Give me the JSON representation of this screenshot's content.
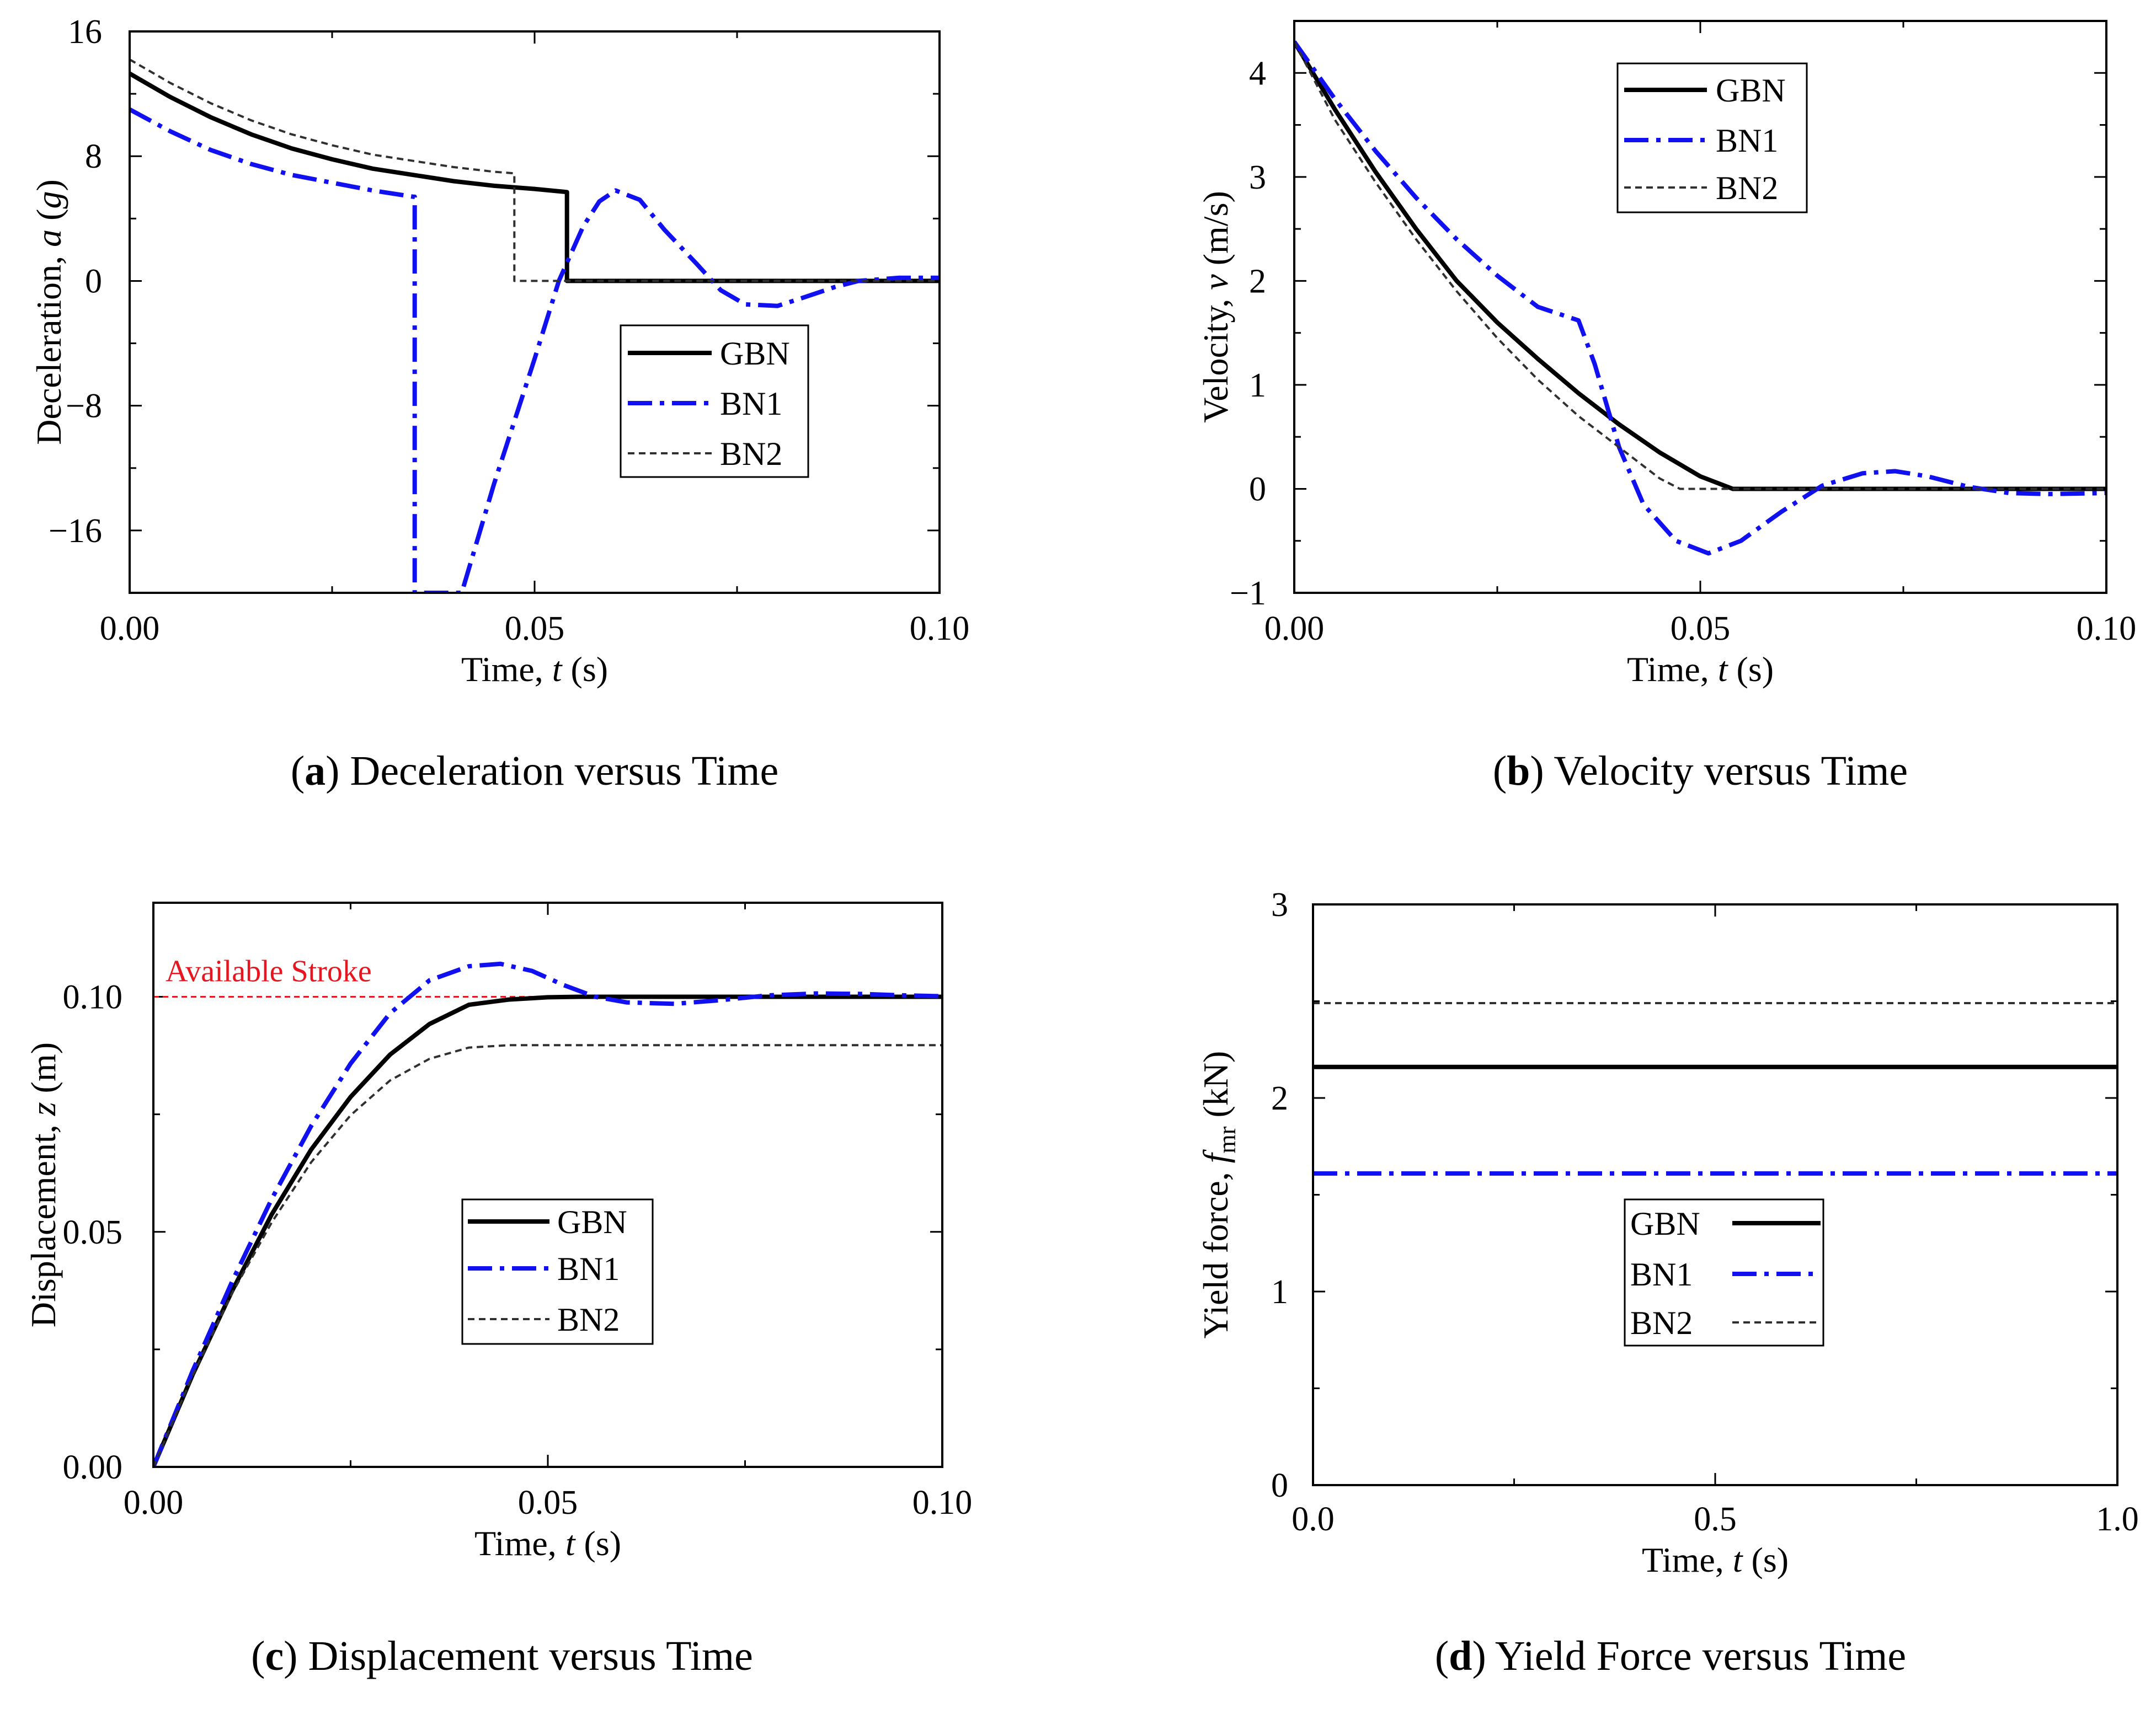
{
  "chart_data": [
    {
      "id": "a",
      "type": "line",
      "caption": {
        "letter": "a",
        "text": " Deceleration versus Time"
      },
      "xlabel": {
        "text": "Time, ",
        "var": "t",
        "unit": " (s)"
      },
      "ylabel": {
        "text": "Deceleration, ",
        "var": "a",
        "unit": " (g)",
        "unit_var": "g"
      },
      "xlim": [
        0,
        0.1
      ],
      "ylim": [
        -20,
        16
      ],
      "xticks": [
        0,
        0.05,
        0.1
      ],
      "xtick_labels": [
        "0.00",
        "0.05",
        "0.10"
      ],
      "yticks": [
        -16,
        -8,
        0,
        8,
        16
      ],
      "ytick_labels": [
        "−16",
        "−8",
        "0",
        "8",
        "16"
      ],
      "legend": "center-right",
      "series": [
        {
          "name": "GBN",
          "style": "solid",
          "x": [
            0,
            0.005,
            0.01,
            0.015,
            0.02,
            0.025,
            0.03,
            0.035,
            0.04,
            0.045,
            0.05,
            0.054,
            0.054,
            0.1
          ],
          "y": [
            13.3,
            11.8,
            10.5,
            9.4,
            8.5,
            7.8,
            7.2,
            6.8,
            6.4,
            6.1,
            5.9,
            5.7,
            0,
            0
          ]
        },
        {
          "name": "BN1",
          "style": "dashdot",
          "x": [
            0,
            0.005,
            0.01,
            0.015,
            0.02,
            0.025,
            0.03,
            0.035,
            0.0352,
            0.0352,
            0.041,
            0.045,
            0.05,
            0.053,
            0.056,
            0.058,
            0.06,
            0.063,
            0.066,
            0.07,
            0.073,
            0.076,
            0.08,
            0.083,
            0.087,
            0.09,
            0.095,
            0.1
          ],
          "y": [
            11,
            9.6,
            8.4,
            7.5,
            6.8,
            6.3,
            5.8,
            5.4,
            5.4,
            -20,
            -20,
            -13,
            -5,
            0,
            3.5,
            5.1,
            5.8,
            5.2,
            3.3,
            1.1,
            -0.6,
            -1.5,
            -1.6,
            -1.1,
            -0.4,
            0,
            0.2,
            0.2
          ]
        },
        {
          "name": "BN2",
          "style": "dotted",
          "x": [
            0,
            0.005,
            0.01,
            0.015,
            0.02,
            0.025,
            0.03,
            0.035,
            0.04,
            0.045,
            0.0475,
            0.0475,
            0.1
          ],
          "y": [
            14.2,
            12.7,
            11.4,
            10.3,
            9.4,
            8.7,
            8.1,
            7.7,
            7.3,
            7.0,
            6.9,
            0,
            0
          ]
        }
      ]
    },
    {
      "id": "b",
      "type": "line",
      "caption": {
        "letter": "b",
        "text": " Velocity versus Time"
      },
      "xlabel": {
        "text": "Time, ",
        "var": "t",
        "unit": " (s)"
      },
      "ylabel": {
        "text": "Velocity, ",
        "var": "v",
        "unit": " (m/s)"
      },
      "xlim": [
        0,
        0.1
      ],
      "ylim": [
        -1,
        4.5
      ],
      "xticks": [
        0,
        0.05,
        0.1
      ],
      "xtick_labels": [
        "0.00",
        "0.05",
        "0.10"
      ],
      "yticks": [
        -1,
        0,
        1,
        2,
        3,
        4
      ],
      "ytick_labels": [
        "−1",
        "0",
        "1",
        "2",
        "3",
        "4"
      ],
      "legend": "top-center",
      "series": [
        {
          "name": "GBN",
          "style": "solid",
          "x": [
            0,
            0.005,
            0.01,
            0.015,
            0.02,
            0.025,
            0.03,
            0.035,
            0.04,
            0.045,
            0.05,
            0.054,
            0.1
          ],
          "y": [
            4.3,
            3.65,
            3.05,
            2.5,
            2.0,
            1.6,
            1.25,
            0.92,
            0.62,
            0.35,
            0.12,
            0,
            0
          ]
        },
        {
          "name": "BN1",
          "style": "dashdot",
          "x": [
            0,
            0.005,
            0.01,
            0.015,
            0.02,
            0.025,
            0.03,
            0.035,
            0.037,
            0.04,
            0.043,
            0.047,
            0.051,
            0.055,
            0.06,
            0.065,
            0.07,
            0.074,
            0.078,
            0.083,
            0.088,
            0.093,
            0.1
          ],
          "y": [
            4.3,
            3.75,
            3.25,
            2.8,
            2.4,
            2.05,
            1.75,
            1.62,
            1.2,
            0.4,
            -0.15,
            -0.5,
            -0.62,
            -0.5,
            -0.22,
            0.03,
            0.15,
            0.17,
            0.12,
            0.02,
            -0.04,
            -0.05,
            -0.04
          ]
        },
        {
          "name": "BN2",
          "style": "dotted",
          "x": [
            0,
            0.005,
            0.01,
            0.015,
            0.02,
            0.025,
            0.03,
            0.035,
            0.04,
            0.045,
            0.0475,
            0.1
          ],
          "y": [
            4.3,
            3.55,
            2.95,
            2.4,
            1.9,
            1.45,
            1.05,
            0.7,
            0.4,
            0.1,
            0,
            0
          ]
        }
      ]
    },
    {
      "id": "c",
      "type": "line",
      "caption": {
        "letter": "c",
        "text": " Displacement versus Time"
      },
      "xlabel": {
        "text": "Time, ",
        "var": "t",
        "unit": " (s)"
      },
      "ylabel": {
        "text": "Displacement, ",
        "var": "z",
        "unit": " (m)"
      },
      "xlim": [
        0,
        0.1
      ],
      "ylim": [
        0,
        0.12
      ],
      "xticks": [
        0,
        0.05,
        0.1
      ],
      "xtick_labels": [
        "0.00",
        "0.05",
        "0.10"
      ],
      "yticks": [
        0,
        0.05,
        0.1
      ],
      "ytick_labels": [
        "0.00",
        "0.05",
        "0.10"
      ],
      "legend": "center",
      "annotation": {
        "text": "Available Stroke",
        "y": 0.1,
        "color": "#e8141e"
      },
      "series": [
        {
          "name": "GBN",
          "style": "solid",
          "x": [
            0,
            0.005,
            0.01,
            0.015,
            0.02,
            0.025,
            0.03,
            0.035,
            0.04,
            0.045,
            0.05,
            0.054,
            0.06,
            0.1
          ],
          "y": [
            0,
            0.0197,
            0.0375,
            0.0537,
            0.0675,
            0.0787,
            0.0877,
            0.0942,
            0.0983,
            0.0994,
            0.0999,
            0.1,
            0.1,
            0.1
          ]
        },
        {
          "name": "BN1",
          "style": "dashdot",
          "x": [
            0,
            0.005,
            0.01,
            0.015,
            0.02,
            0.025,
            0.03,
            0.035,
            0.04,
            0.044,
            0.048,
            0.052,
            0.056,
            0.06,
            0.066,
            0.072,
            0.078,
            0.084,
            0.09,
            0.095,
            0.1
          ],
          "y": [
            0,
            0.0205,
            0.0395,
            0.057,
            0.0725,
            0.0858,
            0.0965,
            0.1035,
            0.1065,
            0.107,
            0.1055,
            0.1025,
            0.1,
            0.0988,
            0.0985,
            0.0993,
            0.1003,
            0.1007,
            0.1006,
            0.1003,
            0.1001
          ]
        },
        {
          "name": "BN2",
          "style": "dotted",
          "x": [
            0,
            0.005,
            0.01,
            0.015,
            0.02,
            0.025,
            0.03,
            0.035,
            0.04,
            0.045,
            0.0475,
            0.1
          ],
          "y": [
            0,
            0.0195,
            0.037,
            0.052,
            0.0648,
            0.0748,
            0.0822,
            0.0868,
            0.0892,
            0.0897,
            0.0897,
            0.0897
          ]
        }
      ]
    },
    {
      "id": "d",
      "type": "line",
      "caption": {
        "letter": "d",
        "text": " Yield Force versus Time"
      },
      "xlabel": {
        "text": "Time, ",
        "var": "t",
        "unit": " (s)"
      },
      "ylabel": {
        "text": "Yield force, ",
        "var": "f",
        "sub": "mr",
        "unit": " (kN)"
      },
      "xlim": [
        0,
        1
      ],
      "ylim": [
        0,
        3
      ],
      "xticks": [
        0,
        0.5,
        1
      ],
      "xtick_labels": [
        "0.0",
        "0.5",
        "1.0"
      ],
      "yticks": [
        0,
        1,
        2,
        3
      ],
      "ytick_labels": [
        "0",
        "1",
        "2",
        "3"
      ],
      "legend": "lower-center",
      "series": [
        {
          "name": "GBN",
          "style": "solid",
          "x": [
            0,
            1
          ],
          "y": [
            2.16,
            2.16
          ]
        },
        {
          "name": "BN1",
          "style": "dashdot",
          "x": [
            0,
            1
          ],
          "y": [
            1.61,
            1.61
          ]
        },
        {
          "name": "BN2",
          "style": "dotted",
          "x": [
            0,
            1
          ],
          "y": [
            2.49,
            2.49
          ]
        }
      ]
    }
  ]
}
